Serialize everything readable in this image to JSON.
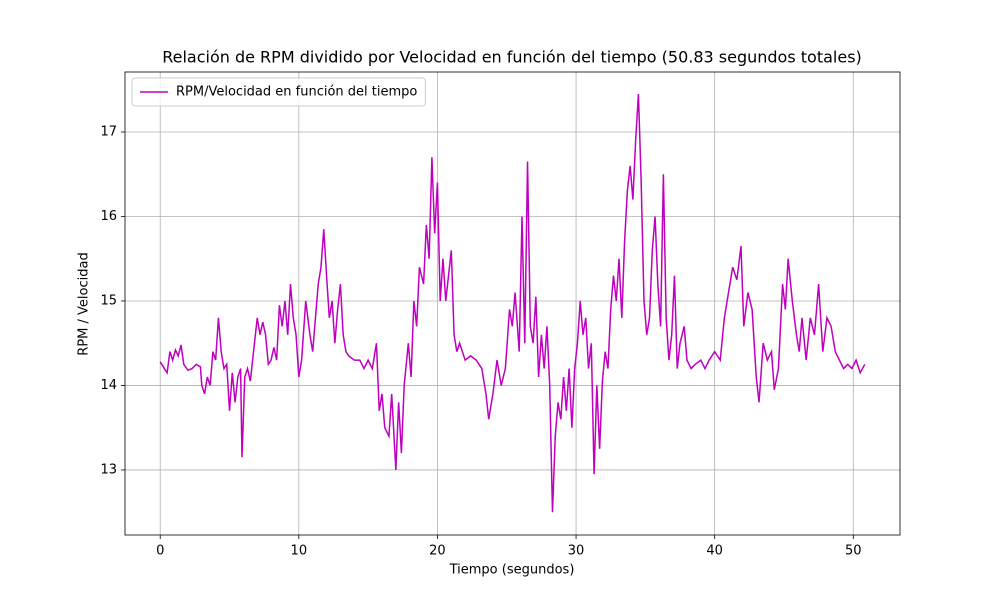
{
  "chart_data": {
    "type": "line",
    "title": "Relación de RPM dividido por Velocidad en función del tiempo (50.83 segundos totales)",
    "x_label": "Tiempo (segundos)",
    "y_label": "RPM / Velocidad",
    "x": [
      0,
      0.3,
      0.5,
      0.7,
      0.9,
      1.1,
      1.3,
      1.5,
      1.7,
      2.0,
      2.3,
      2.6,
      2.9,
      3.0,
      3.2,
      3.4,
      3.6,
      3.8,
      4.0,
      4.2,
      4.4,
      4.6,
      4.8,
      5.0,
      5.2,
      5.4,
      5.6,
      5.8,
      5.9,
      6.1,
      6.3,
      6.5,
      6.8,
      7.0,
      7.2,
      7.4,
      7.6,
      7.8,
      8.0,
      8.2,
      8.4,
      8.6,
      8.8,
      9.0,
      9.2,
      9.4,
      9.6,
      9.8,
      10.0,
      10.2,
      10.5,
      10.8,
      11.0,
      11.2,
      11.4,
      11.6,
      11.8,
      12.0,
      12.2,
      12.4,
      12.6,
      12.8,
      13.0,
      13.2,
      13.4,
      13.6,
      14.0,
      14.4,
      14.7,
      15.0,
      15.3,
      15.6,
      15.8,
      16.0,
      16.2,
      16.5,
      16.7,
      17.0,
      17.2,
      17.4,
      17.6,
      17.9,
      18.1,
      18.3,
      18.5,
      18.7,
      19.0,
      19.2,
      19.4,
      19.6,
      19.8,
      20.0,
      20.2,
      20.4,
      20.6,
      20.8,
      21.0,
      21.2,
      21.4,
      21.6,
      22.0,
      22.4,
      22.8,
      23.2,
      23.5,
      23.7,
      24.0,
      24.3,
      24.6,
      24.9,
      25.2,
      25.4,
      25.6,
      25.9,
      26.1,
      26.3,
      26.5,
      26.7,
      26.9,
      27.1,
      27.3,
      27.5,
      27.7,
      27.9,
      28.1,
      28.3,
      28.5,
      28.7,
      28.9,
      29.1,
      29.3,
      29.5,
      29.7,
      29.9,
      30.1,
      30.3,
      30.5,
      30.7,
      30.9,
      31.1,
      31.3,
      31.5,
      31.7,
      31.9,
      32.1,
      32.3,
      32.5,
      32.7,
      32.9,
      33.1,
      33.3,
      33.5,
      33.7,
      33.9,
      34.1,
      34.3,
      34.5,
      34.7,
      34.9,
      35.1,
      35.3,
      35.5,
      35.7,
      35.9,
      36.1,
      36.3,
      36.5,
      36.7,
      36.9,
      37.1,
      37.3,
      37.5,
      37.8,
      38.0,
      38.3,
      38.6,
      39.0,
      39.3,
      39.6,
      40.0,
      40.4,
      40.7,
      41.0,
      41.3,
      41.6,
      41.9,
      42.1,
      42.4,
      42.7,
      43.0,
      43.2,
      43.5,
      43.8,
      44.1,
      44.3,
      44.6,
      44.9,
      45.1,
      45.3,
      45.6,
      45.9,
      46.1,
      46.3,
      46.6,
      46.9,
      47.2,
      47.5,
      47.8,
      48.1,
      48.4,
      48.7,
      49.0,
      49.3,
      49.6,
      49.9,
      50.2,
      50.5,
      50.83
    ],
    "series": [
      {
        "name": "RPM/Velocidad en función del tiempo",
        "color": "#bf00bf",
        "values": [
          14.28,
          14.2,
          14.15,
          14.4,
          14.3,
          14.42,
          14.35,
          14.48,
          14.25,
          14.18,
          14.2,
          14.25,
          14.22,
          14.0,
          13.9,
          14.1,
          14.0,
          14.4,
          14.3,
          14.8,
          14.4,
          14.2,
          14.25,
          13.7,
          14.15,
          13.8,
          14.1,
          14.2,
          13.15,
          14.1,
          14.2,
          14.05,
          14.5,
          14.8,
          14.6,
          14.75,
          14.6,
          14.25,
          14.3,
          14.45,
          14.3,
          14.95,
          14.7,
          15.0,
          14.6,
          15.2,
          14.8,
          14.6,
          14.1,
          14.3,
          15.0,
          14.6,
          14.4,
          14.8,
          15.2,
          15.4,
          15.85,
          15.3,
          14.8,
          15.0,
          14.5,
          14.9,
          15.2,
          14.6,
          14.4,
          14.35,
          14.3,
          14.3,
          14.2,
          14.3,
          14.2,
          14.5,
          13.7,
          13.9,
          13.5,
          13.4,
          13.9,
          13.0,
          13.8,
          13.2,
          14.0,
          14.5,
          14.1,
          15.0,
          14.7,
          15.4,
          15.2,
          15.9,
          15.5,
          16.7,
          15.8,
          16.4,
          15.0,
          15.5,
          15.0,
          15.3,
          15.6,
          14.6,
          14.4,
          14.5,
          14.3,
          14.35,
          14.3,
          14.2,
          13.9,
          13.6,
          13.9,
          14.3,
          14.0,
          14.2,
          14.9,
          14.7,
          15.1,
          14.4,
          16.0,
          14.5,
          16.65,
          14.7,
          14.5,
          15.05,
          14.1,
          14.6,
          14.2,
          14.7,
          14.0,
          12.5,
          13.4,
          13.8,
          13.6,
          14.1,
          13.7,
          14.2,
          13.5,
          14.2,
          14.5,
          15.0,
          14.6,
          14.8,
          14.2,
          14.5,
          12.95,
          14.0,
          13.25,
          14.05,
          14.4,
          14.2,
          14.9,
          15.3,
          15.0,
          15.5,
          14.8,
          15.7,
          16.3,
          16.6,
          16.2,
          16.9,
          17.45,
          16.4,
          15.0,
          14.6,
          14.8,
          15.6,
          16.0,
          15.2,
          14.7,
          16.5,
          14.8,
          14.3,
          14.6,
          15.3,
          14.2,
          14.5,
          14.7,
          14.3,
          14.2,
          14.25,
          14.3,
          14.2,
          14.3,
          14.4,
          14.3,
          14.8,
          15.1,
          15.4,
          15.25,
          15.65,
          14.7,
          15.1,
          14.9,
          14.1,
          13.8,
          14.5,
          14.3,
          14.4,
          13.95,
          14.2,
          15.2,
          14.9,
          15.5,
          15.0,
          14.6,
          14.4,
          14.8,
          14.3,
          14.8,
          14.6,
          15.2,
          14.4,
          14.8,
          14.7,
          14.4,
          14.3,
          14.2,
          14.25,
          14.2,
          14.3,
          14.15,
          14.25
        ]
      }
    ],
    "xlim": [
      -2.54,
      53.37
    ],
    "ylim": [
      12.23,
      17.71
    ],
    "xticks": [
      0,
      10,
      20,
      30,
      40,
      50
    ],
    "yticks": [
      13,
      14,
      15,
      16,
      17
    ],
    "grid": true,
    "legend": "upper left"
  }
}
